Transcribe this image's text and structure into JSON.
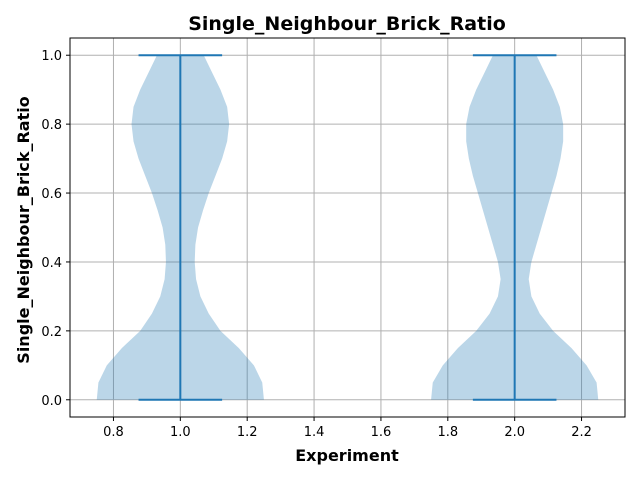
{
  "chart_data": {
    "type": "violin",
    "title": "Single_Neighbour_Brick_Ratio",
    "xlabel": "Experiment",
    "ylabel": "Single_Neighbour_Brick_Ratio",
    "xlim": [
      0.67,
      2.33
    ],
    "ylim": [
      -0.05,
      1.05
    ],
    "x_ticks": [
      0.8,
      1.0,
      1.2,
      1.4,
      1.6,
      1.8,
      2.0,
      2.2
    ],
    "x_tick_labels": [
      "0.8",
      "1.0",
      "1.2",
      "1.4",
      "1.6",
      "1.8",
      "2.0",
      "2.2"
    ],
    "y_ticks": [
      0.0,
      0.2,
      0.4,
      0.6,
      0.8,
      1.0
    ],
    "y_tick_labels": [
      "0.0",
      "0.2",
      "0.4",
      "0.6",
      "0.8",
      "1.0"
    ],
    "grid": true,
    "violins": [
      {
        "position": 1.0,
        "min": 0.0,
        "max": 1.0,
        "density_profile": [
          {
            "y": 0.0,
            "half_width": 0.25
          },
          {
            "y": 0.05,
            "half_width": 0.245
          },
          {
            "y": 0.1,
            "half_width": 0.22
          },
          {
            "y": 0.15,
            "half_width": 0.175
          },
          {
            "y": 0.2,
            "half_width": 0.12
          },
          {
            "y": 0.25,
            "half_width": 0.085
          },
          {
            "y": 0.3,
            "half_width": 0.06
          },
          {
            "y": 0.35,
            "half_width": 0.047
          },
          {
            "y": 0.4,
            "half_width": 0.043
          },
          {
            "y": 0.45,
            "half_width": 0.045
          },
          {
            "y": 0.5,
            "half_width": 0.053
          },
          {
            "y": 0.55,
            "half_width": 0.068
          },
          {
            "y": 0.6,
            "half_width": 0.085
          },
          {
            "y": 0.65,
            "half_width": 0.105
          },
          {
            "y": 0.7,
            "half_width": 0.125
          },
          {
            "y": 0.75,
            "half_width": 0.14
          },
          {
            "y": 0.8,
            "half_width": 0.146
          },
          {
            "y": 0.85,
            "half_width": 0.14
          },
          {
            "y": 0.9,
            "half_width": 0.12
          },
          {
            "y": 0.95,
            "half_width": 0.095
          },
          {
            "y": 1.0,
            "half_width": 0.07
          }
        ]
      },
      {
        "position": 2.0,
        "min": 0.0,
        "max": 1.0,
        "density_profile": [
          {
            "y": 0.0,
            "half_width": 0.25
          },
          {
            "y": 0.05,
            "half_width": 0.245
          },
          {
            "y": 0.1,
            "half_width": 0.215
          },
          {
            "y": 0.15,
            "half_width": 0.17
          },
          {
            "y": 0.2,
            "half_width": 0.115
          },
          {
            "y": 0.25,
            "half_width": 0.075
          },
          {
            "y": 0.3,
            "half_width": 0.05
          },
          {
            "y": 0.35,
            "half_width": 0.042
          },
          {
            "y": 0.4,
            "half_width": 0.05
          },
          {
            "y": 0.45,
            "half_width": 0.065
          },
          {
            "y": 0.5,
            "half_width": 0.08
          },
          {
            "y": 0.55,
            "half_width": 0.095
          },
          {
            "y": 0.6,
            "half_width": 0.11
          },
          {
            "y": 0.65,
            "half_width": 0.125
          },
          {
            "y": 0.7,
            "half_width": 0.137
          },
          {
            "y": 0.75,
            "half_width": 0.145
          },
          {
            "y": 0.8,
            "half_width": 0.145
          },
          {
            "y": 0.85,
            "half_width": 0.135
          },
          {
            "y": 0.9,
            "half_width": 0.115
          },
          {
            "y": 0.95,
            "half_width": 0.09
          },
          {
            "y": 1.0,
            "half_width": 0.065
          }
        ]
      }
    ],
    "cap_half_width": 0.125,
    "colors": {
      "body": "#1f77b4",
      "body_opacity": 0.3,
      "lines": "#1f77b4",
      "grid": "#b0b0b0"
    }
  }
}
